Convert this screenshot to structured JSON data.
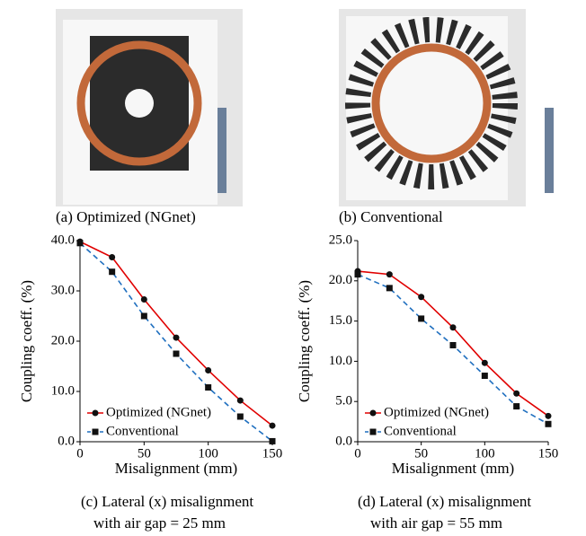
{
  "photos": [
    {
      "caption": "(a) Optimized (NGnet)"
    },
    {
      "caption": "(b) Conventional"
    }
  ],
  "chart_captions": [
    [
      "(c) Lateral (x) misalignment",
      "with air gap = 25 mm"
    ],
    [
      "(d) Lateral (x) misalignment",
      "with air gap = 55 mm"
    ]
  ],
  "chart_data": [
    {
      "type": "line",
      "x_label": "Misalignment (mm)",
      "y_label": "Coupling coeff. (%)",
      "x": [
        0,
        25,
        50,
        75,
        100,
        125,
        150
      ],
      "xlim": [
        0,
        150
      ],
      "xticks": [
        0,
        50,
        100,
        150
      ],
      "ylim": [
        0,
        40
      ],
      "yticks": [
        {
          "value": 0,
          "label": "0.0"
        },
        {
          "value": 10,
          "label": "10.0"
        },
        {
          "value": 20,
          "label": "20.0"
        },
        {
          "value": 30,
          "label": "30.0"
        },
        {
          "value": 40,
          "label": "40.0"
        }
      ],
      "legend": "lower-left",
      "series": [
        {
          "name": "Optimized (NGnet)",
          "color": "#e00000",
          "marker": "circle",
          "dash": false,
          "values": [
            39.8,
            36.7,
            28.3,
            20.7,
            14.2,
            8.2,
            3.2
          ]
        },
        {
          "name": "Conventional",
          "color": "#1f6fbf",
          "marker": "square",
          "dash": true,
          "values": [
            39.5,
            33.8,
            25.0,
            17.5,
            10.8,
            5.0,
            0.1
          ]
        }
      ]
    },
    {
      "type": "line",
      "x_label": "Misalignment (mm)",
      "y_label": "Coupling coeff. (%)",
      "x": [
        0,
        25,
        50,
        75,
        100,
        125,
        150
      ],
      "xlim": [
        0,
        150
      ],
      "xticks": [
        0,
        50,
        100,
        150
      ],
      "ylim": [
        0,
        25
      ],
      "yticks": [
        {
          "value": 0,
          "label": "0.0"
        },
        {
          "value": 5,
          "label": "5.0"
        },
        {
          "value": 10,
          "label": "10.0"
        },
        {
          "value": 15,
          "label": "15.0"
        },
        {
          "value": 20,
          "label": "20.0"
        },
        {
          "value": 25,
          "label": "25.0"
        }
      ],
      "legend": "lower-left",
      "series": [
        {
          "name": "Optimized (NGnet)",
          "color": "#e00000",
          "marker": "circle",
          "dash": false,
          "values": [
            21.2,
            20.8,
            18.0,
            14.2,
            9.8,
            6.0,
            3.2
          ]
        },
        {
          "name": "Conventional",
          "color": "#1f6fbf",
          "marker": "square",
          "dash": true,
          "values": [
            20.8,
            19.1,
            15.3,
            12.0,
            8.2,
            4.4,
            2.2
          ]
        }
      ]
    }
  ]
}
